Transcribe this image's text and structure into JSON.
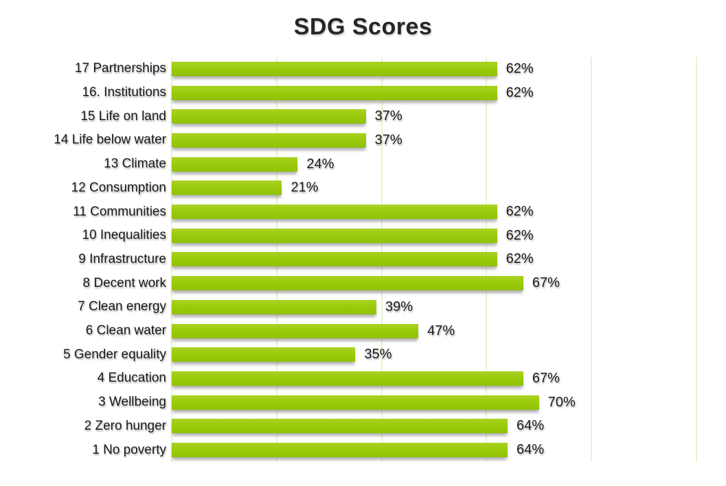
{
  "title": "SDG Scores",
  "colors": {
    "background": "#FFFFFF",
    "bar_top": "#A8D321",
    "bar_mid": "#99C90A",
    "bar_bottom": "#8FC104",
    "gridline": "#E8F4CC",
    "title_text": "#262626",
    "label_text": "#1A1A1A"
  },
  "chart_data": {
    "type": "bar",
    "orientation": "horizontal",
    "title": "SDG Scores",
    "xlabel": "",
    "ylabel": "",
    "legend": false,
    "grid": true,
    "xlim": [
      0,
      100
    ],
    "grid_ticks": [
      0,
      20,
      40,
      60,
      80,
      100
    ],
    "categories": [
      "17 Partnerships",
      "16. Institutions",
      "15 Life on land",
      "14 Life below water",
      "13 Climate",
      "12 Consumption",
      "11 Communities",
      "10 Inequalities",
      "9 Infrastructure",
      "8 Decent work",
      "7 Clean energy",
      "6 Clean water",
      "5 Gender equality",
      "4 Education",
      "3 Wellbeing",
      "2 Zero hunger",
      "1 No poverty"
    ],
    "values": [
      62,
      62,
      37,
      37,
      24,
      21,
      62,
      62,
      62,
      67,
      39,
      47,
      35,
      67,
      70,
      64,
      64
    ],
    "value_labels": [
      "62%",
      "62%",
      "37%",
      "37%",
      "24%",
      "21%",
      "62%",
      "62%",
      "62%",
      "67%",
      "39%",
      "47%",
      "35%",
      "67%",
      "70%",
      "64%",
      "64%"
    ]
  }
}
